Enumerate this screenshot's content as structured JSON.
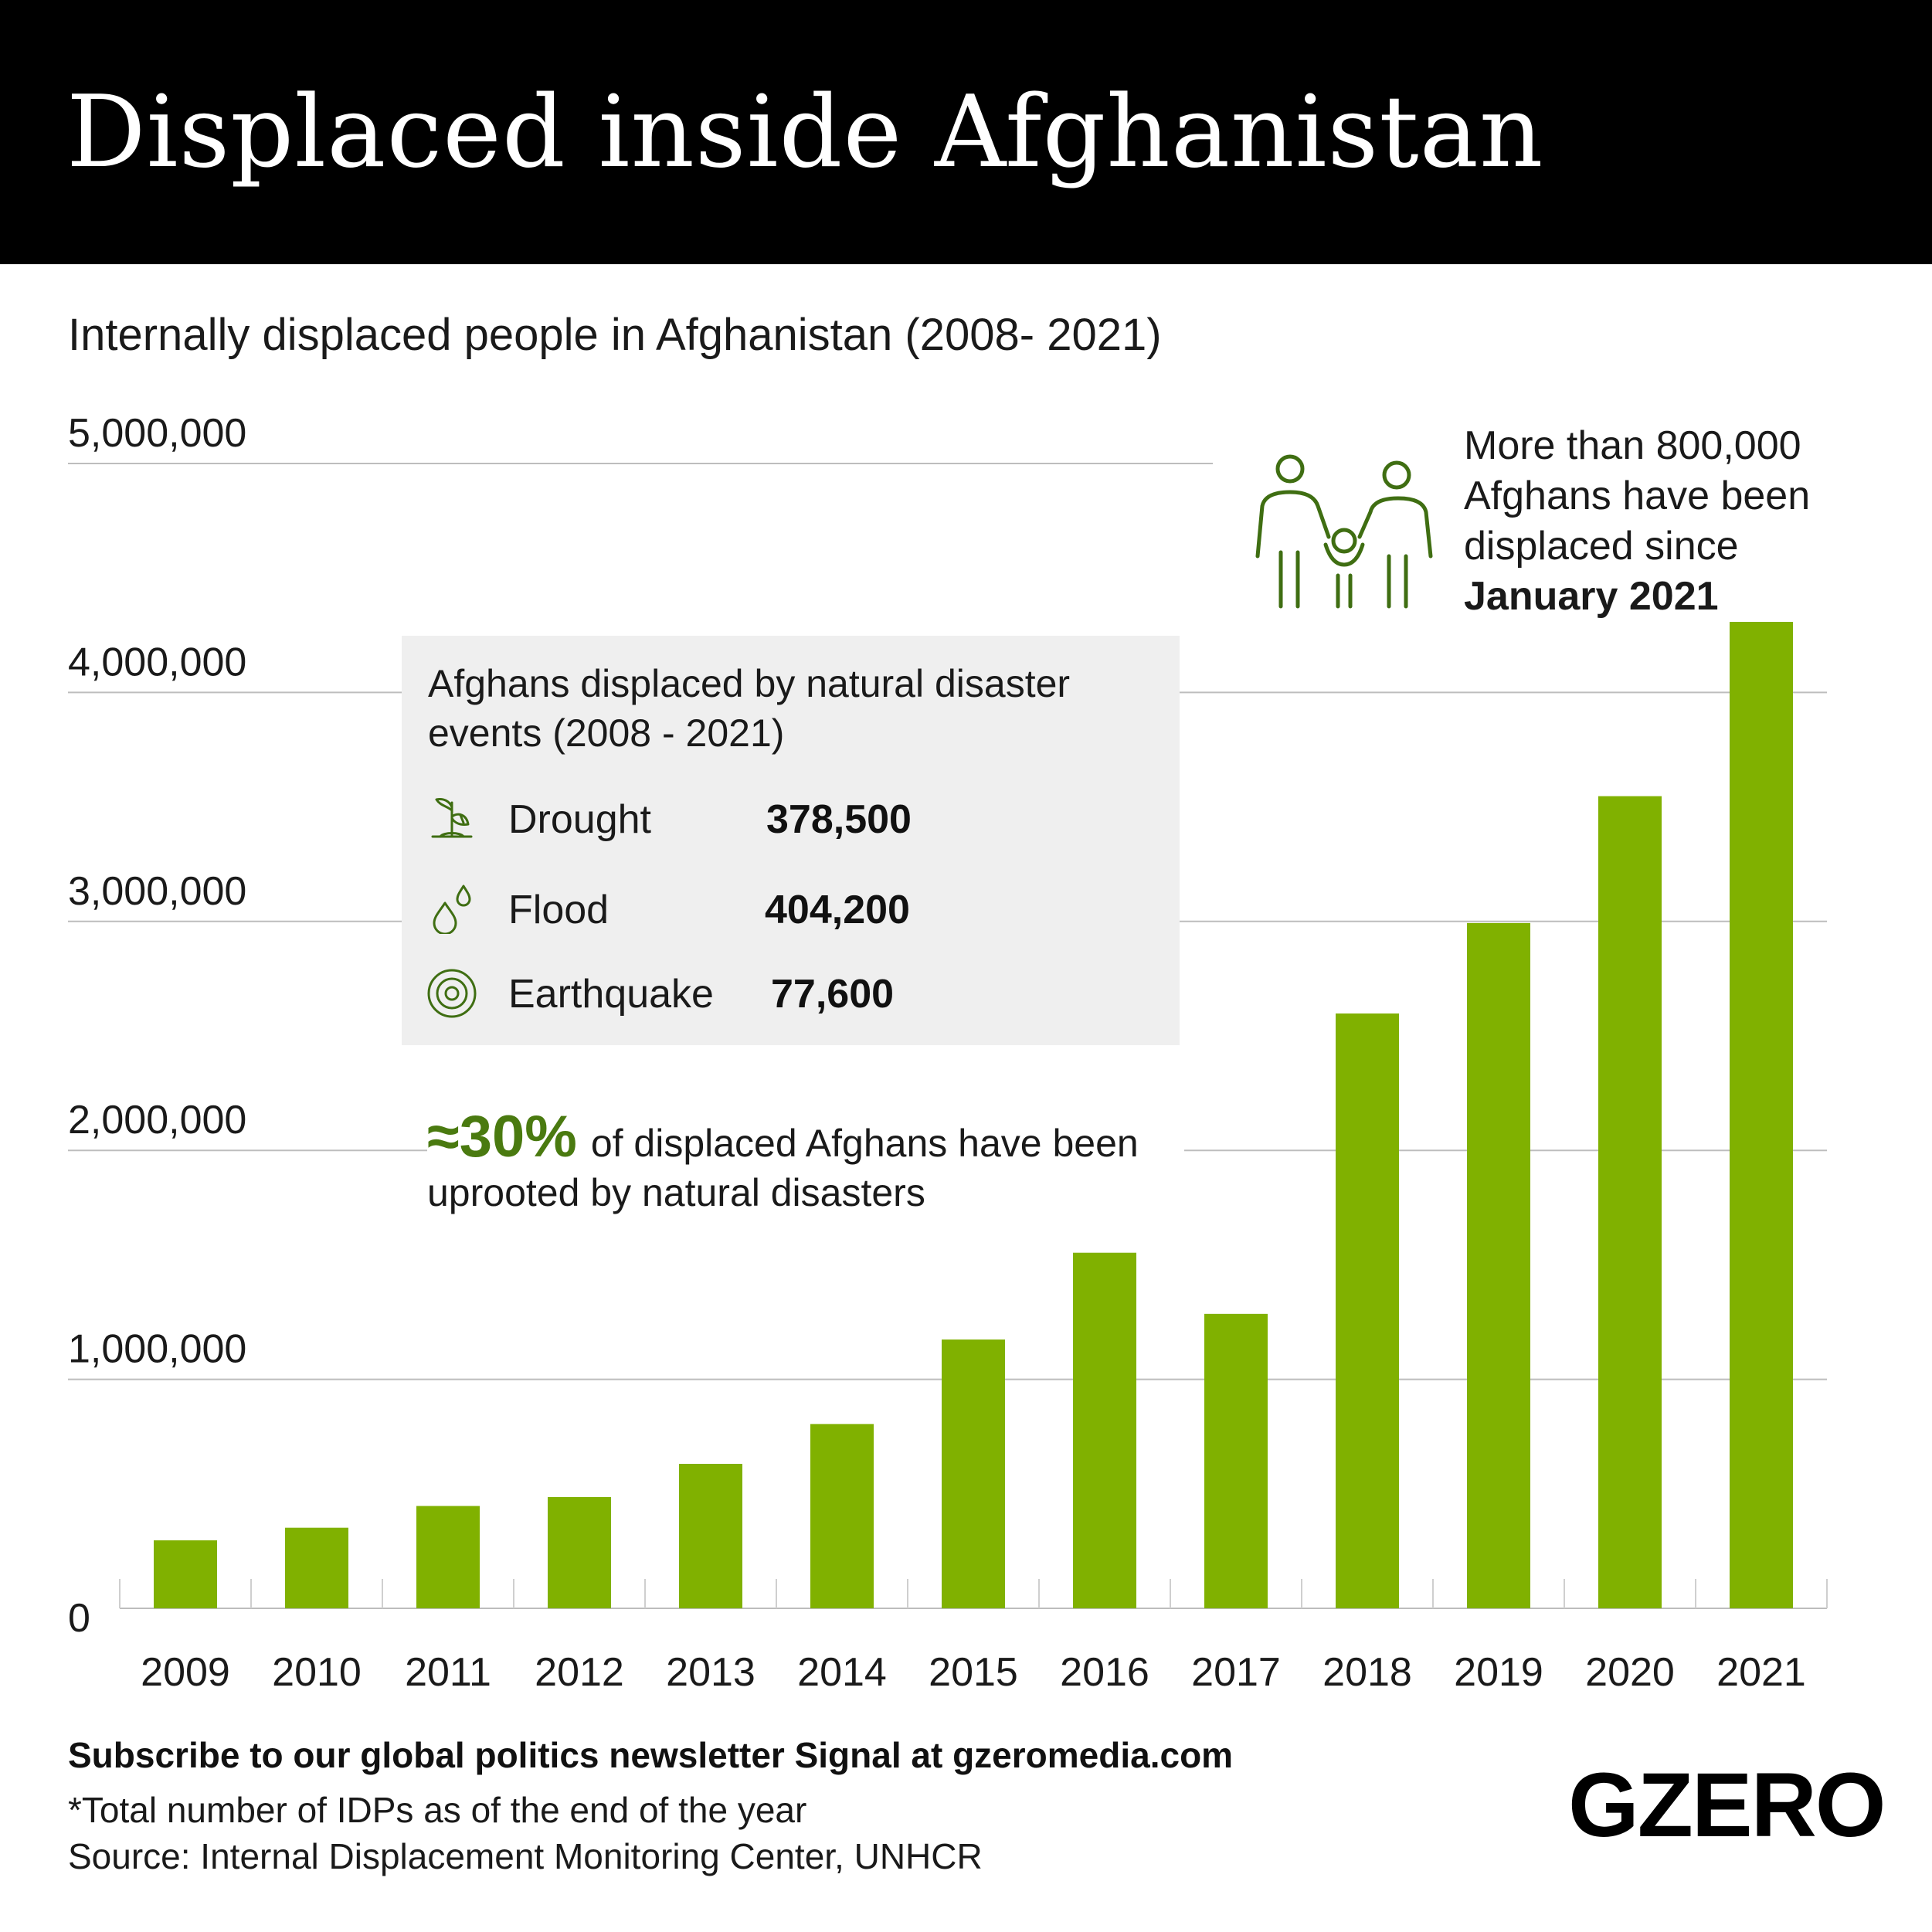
{
  "header": {
    "title": "Displaced inside Afghanistan"
  },
  "subtitle": "Internally displaced people in Afghanistan (2008- 2021)",
  "chart_data": {
    "type": "bar",
    "categories": [
      "2009",
      "2010",
      "2011",
      "2012",
      "2013",
      "2014",
      "2015",
      "2016",
      "2017",
      "2018",
      "2019",
      "2020",
      "2021"
    ],
    "values": [
      297000,
      352000,
      447000,
      486000,
      631000,
      805000,
      1174000,
      1553000,
      1286000,
      2598000,
      2993000,
      3547000,
      4314000
    ],
    "ylim": [
      0,
      5000000
    ],
    "y_ticks": [
      0,
      1000000,
      2000000,
      3000000,
      4000000,
      5000000
    ],
    "y_tick_labels": [
      "0",
      "1,000,000",
      "2,000,000",
      "3,000,000",
      "4,000,000",
      "5,000,000"
    ],
    "bar_color": "#80b100",
    "grid": true,
    "xlabel": "",
    "ylabel": ""
  },
  "info_box": {
    "title": "Afghans displaced by natural disaster events (2008 - 2021)",
    "rows": [
      {
        "icon": "plant-icon",
        "label": "Drought",
        "value": "378,500"
      },
      {
        "icon": "water-drops-icon",
        "label": "Flood",
        "value": "404,200"
      },
      {
        "icon": "concentric-circles-icon",
        "label": "Earthquake",
        "value": "77,600"
      }
    ]
  },
  "callout": {
    "big": "≈30%",
    "text": "of displaced Afghans have been uprooted by natural disasters"
  },
  "annotation": {
    "icon": "family-icon",
    "text": "More than 800,000 Afghans have been displaced since",
    "bold": "January 2021"
  },
  "footer": {
    "subscribe": "Subscribe to our global politics newsletter Signal at gzeromedia.com",
    "note": "*Total number of IDPs as of the end of the year",
    "source": "Source: Internal Displacement Monitoring Center, UNHCR"
  },
  "logo": "GZERO",
  "colors": {
    "accent_green": "#80b100",
    "icon_green": "#3f6e12",
    "header_bg": "#000000",
    "box_bg": "#efefef"
  }
}
